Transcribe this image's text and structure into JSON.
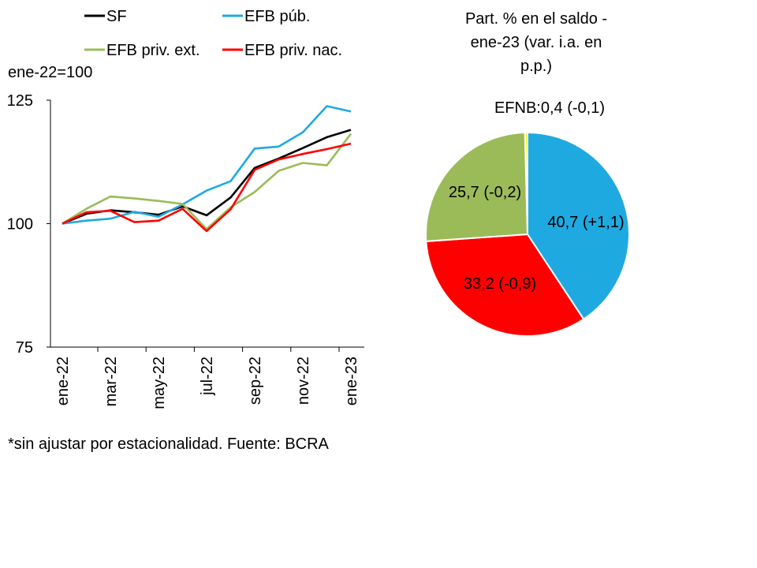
{
  "colors": {
    "SF": "#000000",
    "EFB pub": "#1fa9e1",
    "EFB priv ext": "#9bbb59",
    "EFB priv nac": "#ff0000",
    "EFNB": "#f5f500"
  },
  "chart_data": [
    {
      "type": "line",
      "ylabel": "ene-22=100",
      "ylim": [
        75,
        125
      ],
      "yticks": [
        75,
        100,
        125
      ],
      "x": [
        "ene-22",
        "feb-22",
        "mar-22",
        "abr-22",
        "may-22",
        "jun-22",
        "jul-22",
        "ago-22",
        "sep-22",
        "oct-22",
        "nov-22",
        "dic-22",
        "ene-23"
      ],
      "xtick_labels": [
        "ene-22",
        "mar-22",
        "may-22",
        "jul-22",
        "sep-22",
        "nov-22",
        "ene-23"
      ],
      "legend_position": "top",
      "series": [
        {
          "name": "SF",
          "color": "#000000",
          "values": [
            100.0,
            102.0,
            102.7,
            102.3,
            101.8,
            103.5,
            101.7,
            105.3,
            111.3,
            113.2,
            115.3,
            117.5,
            119.0
          ]
        },
        {
          "name": "EFB púb.",
          "color": "#1fa9e1",
          "values": [
            100.0,
            100.6,
            101.0,
            102.4,
            101.4,
            103.9,
            106.7,
            108.6,
            115.2,
            115.6,
            118.5,
            123.8,
            122.7
          ]
        },
        {
          "name": "EFB priv. ext.",
          "color": "#9bbb59",
          "values": [
            100.0,
            103.0,
            105.5,
            105.1,
            104.6,
            104.0,
            98.9,
            103.3,
            106.4,
            110.7,
            112.3,
            111.8,
            118.2
          ]
        },
        {
          "name": "EFB priv. nac.",
          "color": "#ff0000",
          "values": [
            100.0,
            102.3,
            102.6,
            100.3,
            100.6,
            103.0,
            98.5,
            102.9,
            110.9,
            113.0,
            114.1,
            115.1,
            116.2
          ]
        }
      ]
    },
    {
      "type": "pie",
      "title": "Part. % en el saldo - ene-23 (var. i.a. en p.p.)",
      "title_lines": [
        "Part. % en el saldo -",
        "ene-23 (var. i.a. en",
        "p.p.)"
      ],
      "slices": [
        {
          "name": "EFB púb.",
          "value": 40.7,
          "label": "40,7 (+1,1)",
          "color": "#1fa9e1"
        },
        {
          "name": "EFB priv. nac.",
          "value": 33.2,
          "label": "33,2 (-0,9)",
          "color": "#ff0000"
        },
        {
          "name": "EFB priv. ext.",
          "value": 25.7,
          "label": "25,7 (-0,2)",
          "color": "#9bbb59"
        },
        {
          "name": "EFNB",
          "value": 0.4,
          "label": "EFNB:0,4 (-0,1)",
          "color": "#f5f500"
        }
      ]
    }
  ],
  "footnote": "*sin ajustar por estacionalidad. Fuente: BCRA"
}
